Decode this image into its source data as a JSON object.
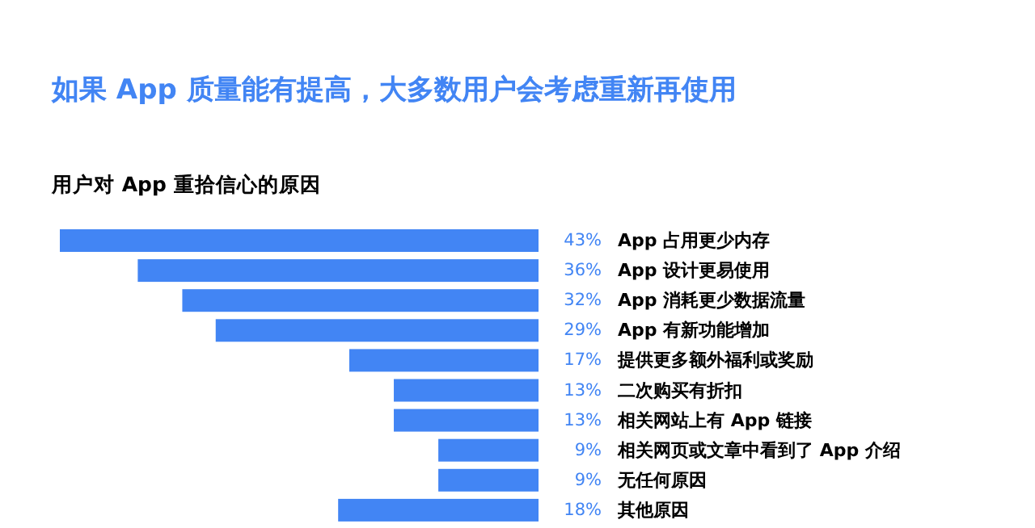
{
  "chart_data": {
    "type": "bar",
    "orientation": "horizontal",
    "title": "如果 App 质量能有提高，大多数用户会考虑重新再使用",
    "subtitle": "用户对 App 重拾信心的原因",
    "categories": [
      "App 占用更少内存",
      "App 设计更易使用",
      "App 消耗更少数据流量",
      "App 有新功能增加",
      "提供更多额外福利或奖励",
      "二次购买有折扣",
      "相关网站上有 App 链接",
      "相关网页或文章中看到了 App 介绍",
      "无任何原因",
      "其他原因"
    ],
    "values": [
      43,
      36,
      32,
      29,
      17,
      13,
      13,
      9,
      9,
      18
    ],
    "value_labels": [
      "43%",
      "36%",
      "32%",
      "29%",
      "17%",
      "13%",
      "13%",
      "9%",
      "9%",
      "18%"
    ],
    "color": "#4285f4"
  }
}
